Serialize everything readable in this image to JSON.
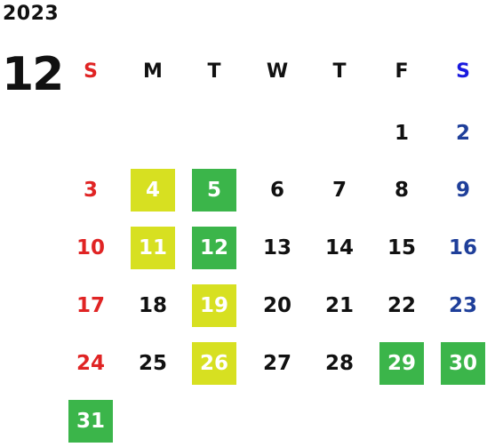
{
  "calendar": {
    "year": "2023",
    "month": "12",
    "weekdays": [
      "S",
      "M",
      "T",
      "W",
      "T",
      "F",
      "S"
    ],
    "weekday_colors": {
      "sunday": "#e02424",
      "saturday": "#1a1adf",
      "weekday": "#111111"
    },
    "day_colors": {
      "sunday": "#e02424",
      "saturday": "#1f3f9a",
      "weekday": "#111111"
    },
    "highlight_colors": {
      "lime": "#d7e021",
      "green": "#3bb54a"
    },
    "first_weekday_index": 5,
    "days_in_month": 31,
    "days": [
      {
        "label": "1"
      },
      {
        "label": "2"
      },
      {
        "label": "3"
      },
      {
        "label": "4",
        "highlight": "lime"
      },
      {
        "label": "5",
        "highlight": "green"
      },
      {
        "label": "6"
      },
      {
        "label": "7"
      },
      {
        "label": "8"
      },
      {
        "label": "9"
      },
      {
        "label": "10"
      },
      {
        "label": "11",
        "highlight": "lime"
      },
      {
        "label": "12",
        "highlight": "green"
      },
      {
        "label": "13"
      },
      {
        "label": "14"
      },
      {
        "label": "15"
      },
      {
        "label": "16"
      },
      {
        "label": "17"
      },
      {
        "label": "18"
      },
      {
        "label": "19",
        "highlight": "lime"
      },
      {
        "label": "20"
      },
      {
        "label": "21"
      },
      {
        "label": "22"
      },
      {
        "label": "23"
      },
      {
        "label": "24"
      },
      {
        "label": "25"
      },
      {
        "label": "26",
        "highlight": "lime"
      },
      {
        "label": "27"
      },
      {
        "label": "28"
      },
      {
        "label": "29",
        "highlight": "green"
      },
      {
        "label": "30",
        "highlight": "green"
      },
      {
        "label": "31",
        "highlight": "green"
      }
    ]
  }
}
